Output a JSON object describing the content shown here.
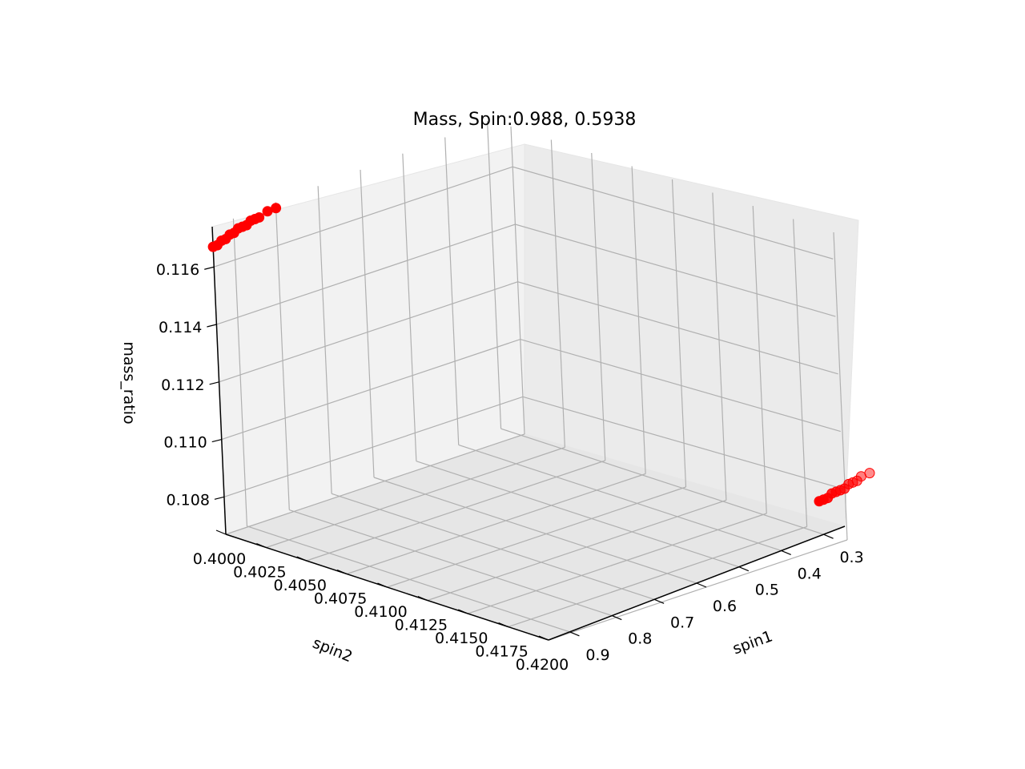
{
  "chart_data": {
    "type": "scatter",
    "title": "Mass, Spin:0.988, 0.5938",
    "xlabel": "spin1",
    "ylabel": "spin2",
    "zlabel": "mass_ratio",
    "x_ticks": [
      "0.3",
      "0.4",
      "0.5",
      "0.6",
      "0.7",
      "0.8",
      "0.9"
    ],
    "y_ticks": [
      "0.4000",
      "0.4025",
      "0.4050",
      "0.4075",
      "0.4100",
      "0.4125",
      "0.4150",
      "0.4175",
      "0.4200"
    ],
    "z_ticks": [
      "0.108",
      "0.110",
      "0.112",
      "0.114",
      "0.116"
    ],
    "grid": true,
    "marker_color": "#ff0000",
    "series": [
      {
        "points": [
          {
            "spin1": 0.95,
            "spin2": 0.4,
            "mass_ratio": 0.1167
          },
          {
            "spin1": 0.94,
            "spin2": 0.4,
            "mass_ratio": 0.1167
          },
          {
            "spin1": 0.93,
            "spin2": 0.4,
            "mass_ratio": 0.1168
          },
          {
            "spin1": 0.92,
            "spin2": 0.4,
            "mass_ratio": 0.1168
          },
          {
            "spin1": 0.91,
            "spin2": 0.4,
            "mass_ratio": 0.1169
          },
          {
            "spin1": 0.9,
            "spin2": 0.4,
            "mass_ratio": 0.1169
          },
          {
            "spin1": 0.89,
            "spin2": 0.4,
            "mass_ratio": 0.117
          },
          {
            "spin1": 0.88,
            "spin2": 0.4,
            "mass_ratio": 0.117
          },
          {
            "spin1": 0.87,
            "spin2": 0.4,
            "mass_ratio": 0.117
          },
          {
            "spin1": 0.86,
            "spin2": 0.4,
            "mass_ratio": 0.1171
          },
          {
            "spin1": 0.85,
            "spin2": 0.4,
            "mass_ratio": 0.1171
          },
          {
            "spin1": 0.84,
            "spin2": 0.4,
            "mass_ratio": 0.1171
          },
          {
            "spin1": 0.82,
            "spin2": 0.4,
            "mass_ratio": 0.1172
          },
          {
            "spin1": 0.8,
            "spin2": 0.4,
            "mass_ratio": 0.1172
          }
        ]
      },
      {
        "points": [
          {
            "spin1": 0.27,
            "spin2": 0.419,
            "mass_ratio": 0.1075
          },
          {
            "spin1": 0.26,
            "spin2": 0.419,
            "mass_ratio": 0.1075
          },
          {
            "spin1": 0.25,
            "spin2": 0.419,
            "mass_ratio": 0.1075
          },
          {
            "spin1": 0.24,
            "spin2": 0.419,
            "mass_ratio": 0.1076
          },
          {
            "spin1": 0.23,
            "spin2": 0.419,
            "mass_ratio": 0.1076
          },
          {
            "spin1": 0.22,
            "spin2": 0.419,
            "mass_ratio": 0.1076
          },
          {
            "spin1": 0.21,
            "spin2": 0.419,
            "mass_ratio": 0.1076
          },
          {
            "spin1": 0.2,
            "spin2": 0.419,
            "mass_ratio": 0.1077
          },
          {
            "spin1": 0.19,
            "spin2": 0.419,
            "mass_ratio": 0.1077
          },
          {
            "spin1": 0.18,
            "spin2": 0.419,
            "mass_ratio": 0.1077
          },
          {
            "spin1": 0.17,
            "spin2": 0.419,
            "mass_ratio": 0.1078
          },
          {
            "spin1": 0.15,
            "spin2": 0.419,
            "mass_ratio": 0.1078
          }
        ]
      }
    ]
  }
}
